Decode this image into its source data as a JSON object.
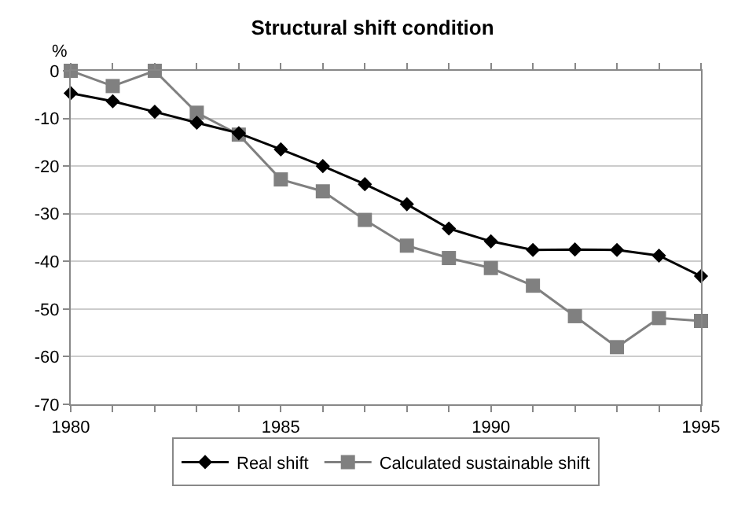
{
  "chart_data": {
    "type": "line",
    "title": "Structural shift condition",
    "ylabel": "%",
    "x": [
      1980,
      1981,
      1982,
      1983,
      1984,
      1985,
      1986,
      1987,
      1988,
      1989,
      1990,
      1991,
      1992,
      1993,
      1994,
      1995
    ],
    "series": [
      {
        "name": "Real shift",
        "color": "#000000",
        "marker": "diamond",
        "values": [
          -4.7,
          -6.4,
          -8.6,
          -10.9,
          -13.1,
          -16.5,
          -20,
          -23.8,
          -28,
          -33.1,
          -35.8,
          -37.6,
          -37.5,
          -37.6,
          -38.8,
          -43.1
        ]
      },
      {
        "name": "Calculated sustainable shift",
        "color": "#808080",
        "marker": "square",
        "values": [
          0,
          -3.2,
          0,
          -8.8,
          -13.4,
          -22.8,
          -25.3,
          -31.3,
          -36.7,
          -39.3,
          -41.4,
          -45.1,
          -51.5,
          -58,
          -51.9,
          -52.5
        ]
      }
    ],
    "xlim": [
      1980,
      1995
    ],
    "xticks": [
      1980,
      {
        "value": 1981,
        "label": null
      },
      {
        "value": 1982,
        "label": null
      },
      {
        "value": 1983,
        "label": null
      },
      {
        "value": 1984,
        "label": null
      },
      1985,
      {
        "value": 1986,
        "label": null
      },
      {
        "value": 1987,
        "label": null
      },
      {
        "value": 1988,
        "label": null
      },
      {
        "value": 1989,
        "label": null
      },
      1990,
      {
        "value": 1991,
        "label": null
      },
      {
        "value": 1992,
        "label": null
      },
      {
        "value": 1993,
        "label": null
      },
      {
        "value": 1994,
        "label": null
      },
      1995
    ],
    "ylim": [
      -70,
      0
    ],
    "yticks": [
      -70,
      -60,
      -50,
      -40,
      -30,
      -20,
      -10,
      0
    ],
    "grid": "y",
    "legend": "bottom",
    "line_style": "solid"
  }
}
